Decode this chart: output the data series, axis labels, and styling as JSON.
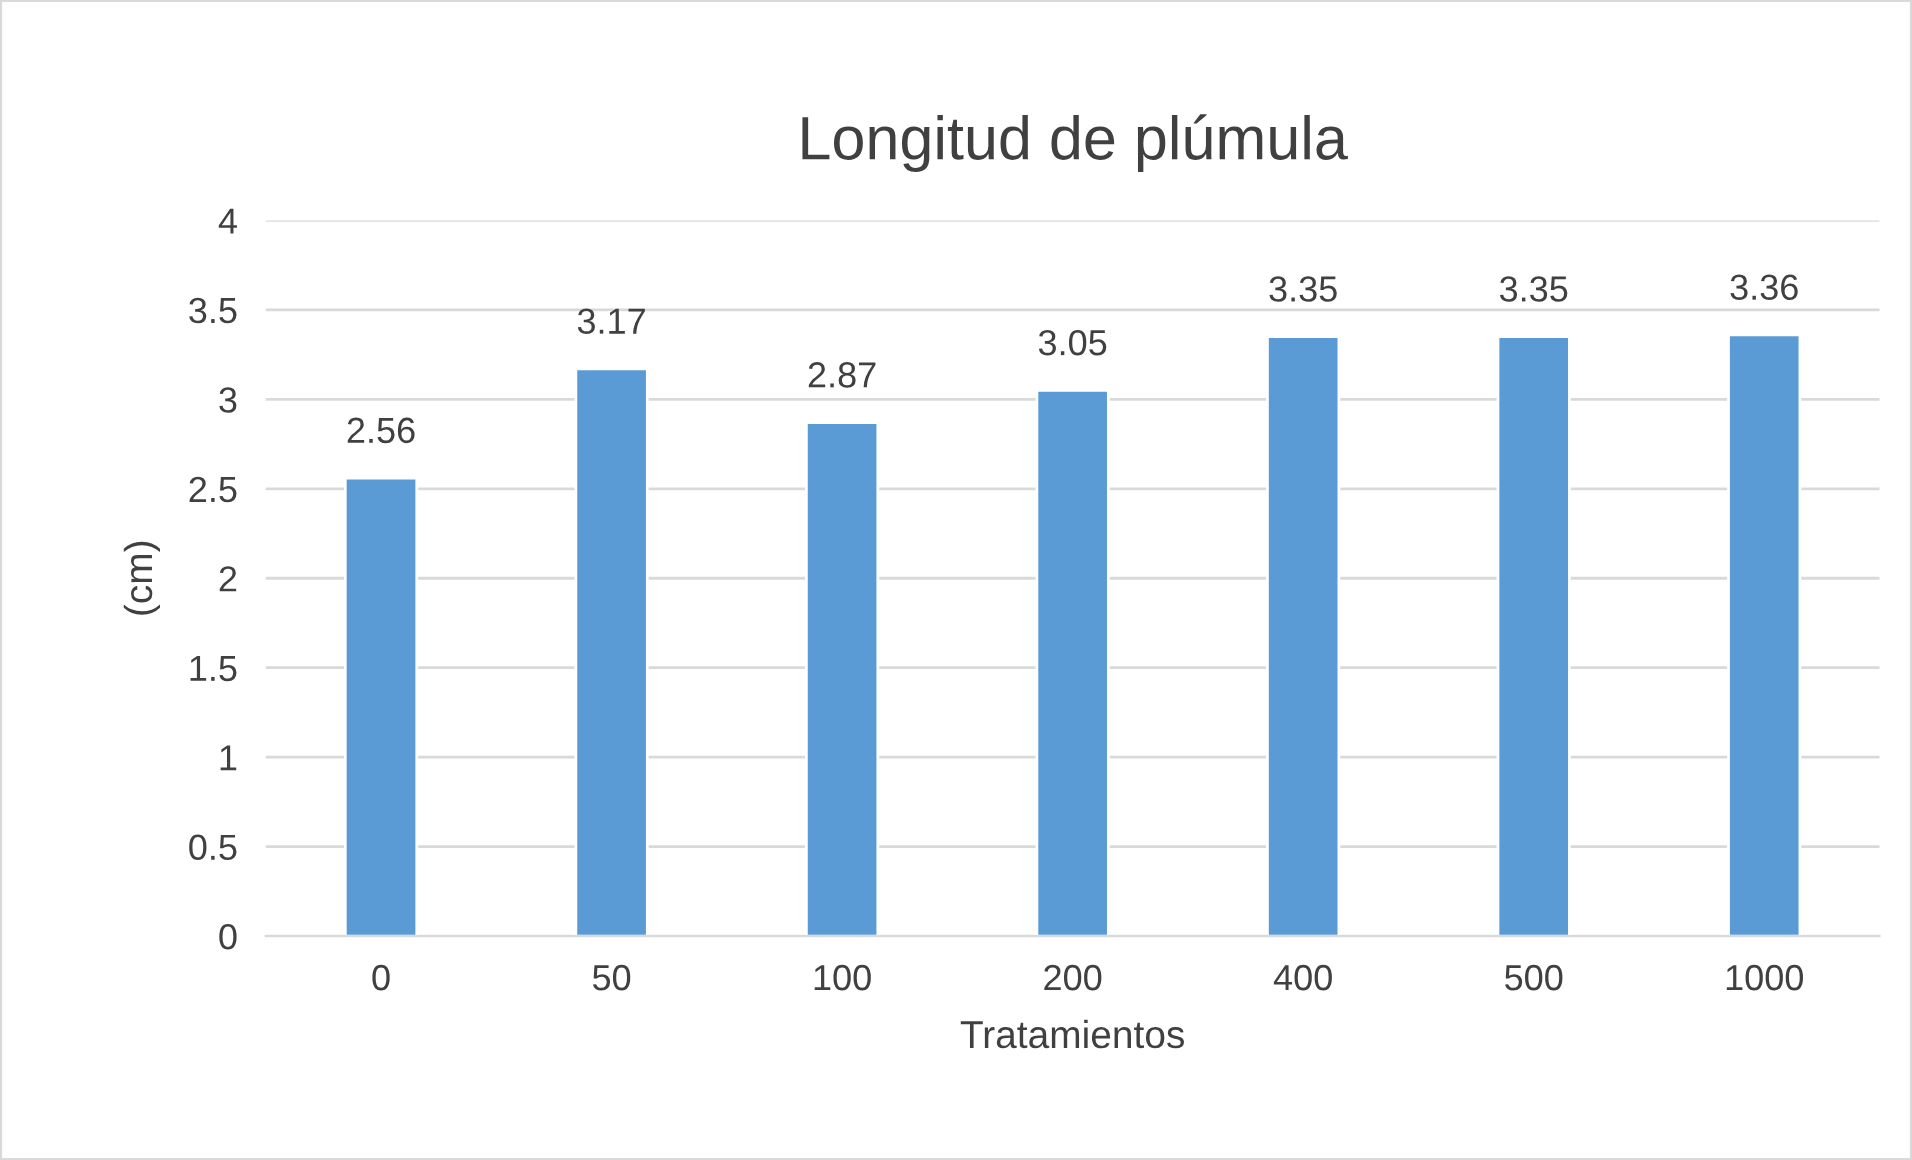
{
  "chart_data": {
    "type": "bar",
    "title": "Longitud de plúmula",
    "xlabel": "Tratamientos",
    "ylabel": "(cm)",
    "categories": [
      "0",
      "50",
      "100",
      "200",
      "400",
      "500",
      "1000"
    ],
    "values": [
      2.56,
      3.17,
      2.87,
      3.05,
      3.35,
      3.35,
      3.36
    ],
    "color": "#5b9bd5",
    "ylim": [
      0,
      4
    ],
    "yticks": [
      0,
      0.5,
      1,
      1.5,
      2,
      2.5,
      3,
      3.5,
      4
    ],
    "grid": "y",
    "data_labels": true
  }
}
